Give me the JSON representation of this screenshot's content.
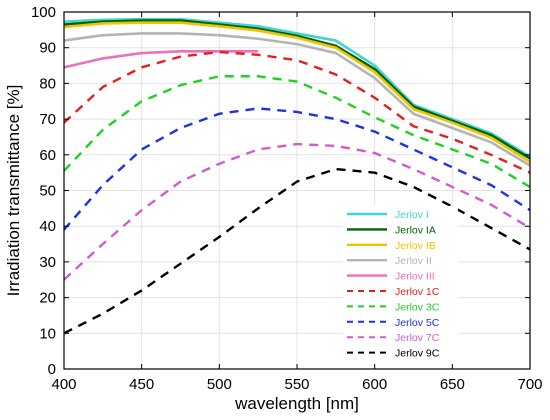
{
  "chart_data": {
    "type": "line",
    "xlabel": "wavelength [nm]",
    "ylabel": "Irradiation transmittance [%]",
    "xlim": [
      400,
      700
    ],
    "ylim": [
      0,
      100
    ],
    "xticks": [
      400,
      450,
      500,
      550,
      600,
      650,
      700
    ],
    "yticks": [
      0,
      10,
      20,
      30,
      40,
      50,
      60,
      70,
      80,
      90,
      100
    ],
    "grid": true,
    "legend_position": "bottom-right",
    "x": [
      400,
      425,
      450,
      475,
      500,
      525,
      550,
      575,
      600,
      625,
      650,
      675,
      700
    ],
    "series": [
      {
        "name": "Jerlov I",
        "color": "#46d2d2",
        "dashed": false,
        "values": [
          97.3,
          97.8,
          98.0,
          98.0,
          97.0,
          96.0,
          94.0,
          92.0,
          85.0,
          74.0,
          70.0,
          66.0,
          59.5
        ]
      },
      {
        "name": "Jerlov IA",
        "color": "#006400",
        "dashed": false,
        "values": [
          96.5,
          97.3,
          97.6,
          97.6,
          96.5,
          95.3,
          93.3,
          90.5,
          84.0,
          73.5,
          69.5,
          65.5,
          59.0
        ]
      },
      {
        "name": "Jerlov IB",
        "color": "#f2c200",
        "dashed": false,
        "values": [
          95.8,
          96.8,
          97.0,
          97.0,
          96.0,
          94.8,
          92.8,
          90.0,
          83.2,
          72.8,
          69.0,
          64.8,
          58.0
        ]
      },
      {
        "name": "Jerlov II",
        "color": "#b4b4b4",
        "dashed": false,
        "values": [
          92.0,
          93.5,
          94.0,
          94.0,
          93.5,
          92.5,
          91.0,
          88.5,
          81.5,
          71.5,
          67.5,
          63.5,
          57.0
        ]
      },
      {
        "name": "Jerlov III",
        "color": "#ee6fbd",
        "dashed": false,
        "values": [
          84.5,
          87.0,
          88.5,
          89.0,
          89.0,
          89.0,
          null,
          null,
          null,
          null,
          null,
          null,
          null
        ]
      },
      {
        "name": "Jerlov 1C",
        "color": "#e61e1e",
        "dashed": true,
        "values": [
          69.0,
          79.0,
          84.5,
          87.5,
          88.8,
          88.0,
          86.5,
          82.5,
          76.0,
          68.0,
          64.5,
          60.0,
          55.0
        ]
      },
      {
        "name": "Jerlov 3C",
        "color": "#1ed21e",
        "dashed": true,
        "values": [
          55.5,
          67.0,
          75.0,
          79.5,
          82.0,
          82.0,
          80.5,
          76.0,
          70.5,
          65.5,
          61.5,
          57.5,
          51.0
        ]
      },
      {
        "name": "Jerlov 5C",
        "color": "#1e32e6",
        "dashed": true,
        "values": [
          39.0,
          51.5,
          61.5,
          67.5,
          71.5,
          73.0,
          72.0,
          70.0,
          66.5,
          61.5,
          56.5,
          51.5,
          44.5
        ]
      },
      {
        "name": "Jerlov 7C",
        "color": "#d25ad2",
        "dashed": true,
        "values": [
          25.0,
          35.0,
          44.5,
          52.5,
          57.5,
          61.5,
          63.0,
          62.5,
          60.5,
          56.0,
          51.0,
          46.0,
          39.5
        ]
      },
      {
        "name": "Jerlov 9C",
        "color": "#000000",
        "dashed": true,
        "values": [
          10.0,
          15.5,
          22.0,
          29.5,
          37.0,
          45.0,
          52.5,
          56.0,
          55.0,
          51.0,
          45.5,
          39.5,
          33.5
        ]
      }
    ]
  }
}
